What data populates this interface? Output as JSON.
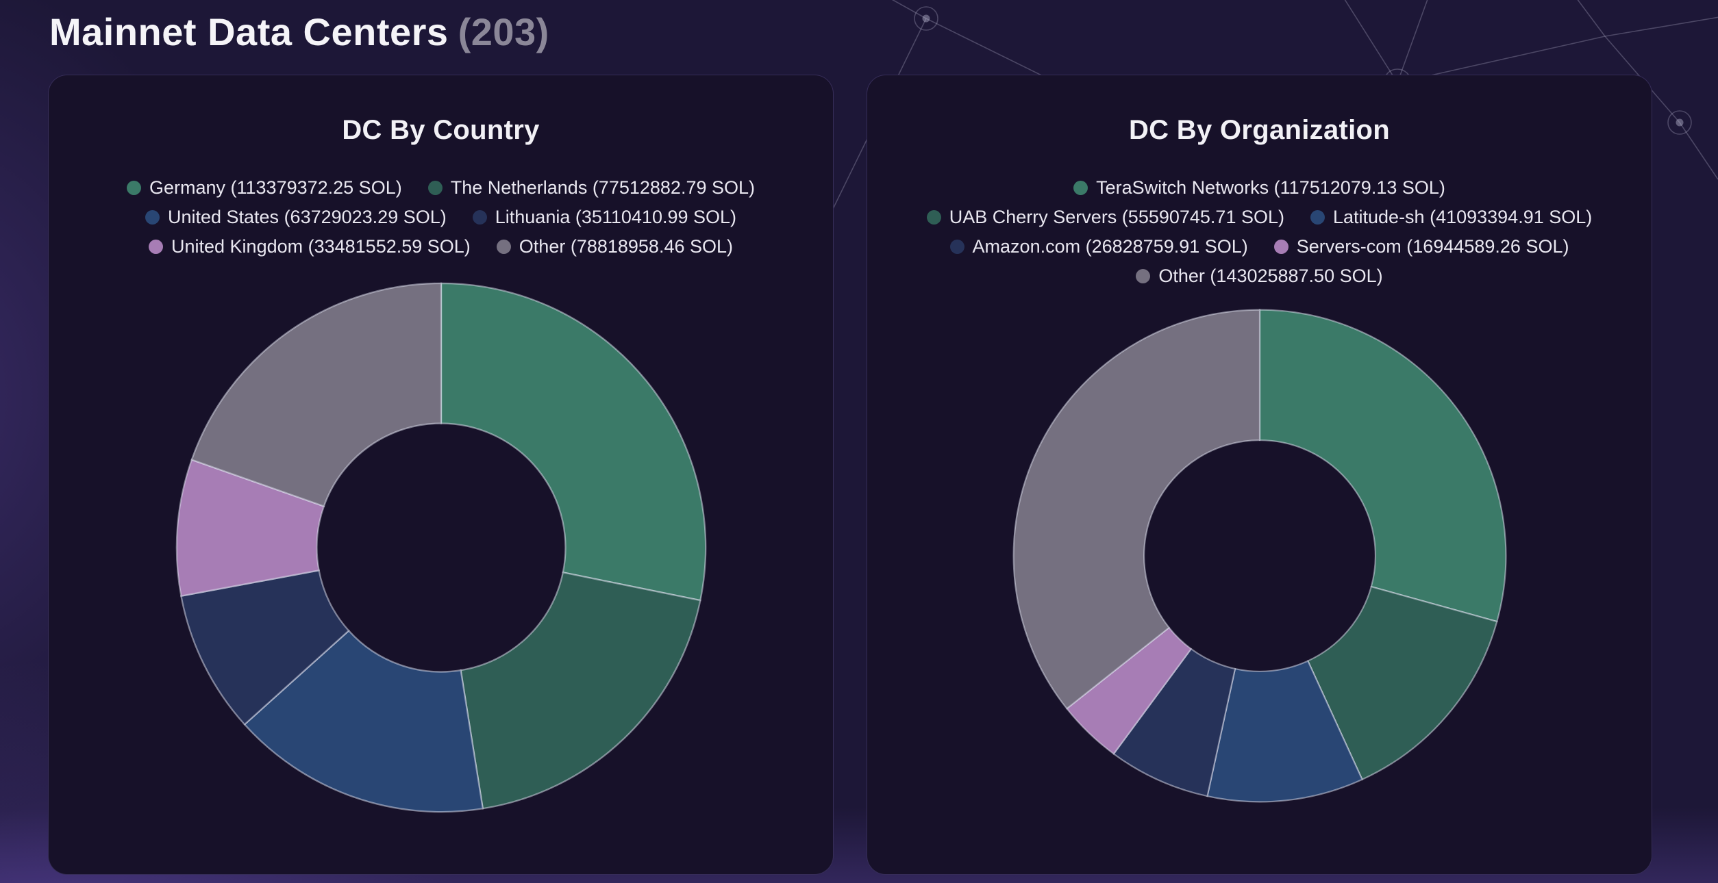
{
  "page": {
    "title": "Mainnet Data Centers",
    "title_count": "(203)"
  },
  "chart_data": [
    {
      "type": "pie",
      "donut": true,
      "title": "DC By Country",
      "unit": "SOL",
      "inner_radius_ratio": 0.47,
      "legend_position": "top",
      "segments": [
        {
          "label": "Germany",
          "value": 113379372.25,
          "display": "Germany (113379372.25 SOL)",
          "color": "#3b7a68"
        },
        {
          "label": "The Netherlands",
          "value": 77512882.79,
          "display": "The Netherlands (77512882.79 SOL)",
          "color": "#2f5e55"
        },
        {
          "label": "United States",
          "value": 63729023.29,
          "display": "United States (63729023.29 SOL)",
          "color": "#294674"
        },
        {
          "label": "Lithuania",
          "value": 35110410.99,
          "display": "Lithuania (35110410.99 SOL)",
          "color": "#263259"
        },
        {
          "label": "United Kingdom",
          "value": 33481552.59,
          "display": "United Kingdom (33481552.59 SOL)",
          "color": "#a77db5"
        },
        {
          "label": "Other",
          "value": 78818958.46,
          "display": "Other (78818958.46 SOL)",
          "color": "#757080"
        }
      ],
      "legend_rows": [
        [
          0,
          1
        ],
        [
          2,
          3
        ],
        [
          4,
          5
        ]
      ]
    },
    {
      "type": "pie",
      "donut": true,
      "title": "DC By Organization",
      "unit": "SOL",
      "inner_radius_ratio": 0.47,
      "legend_position": "top",
      "segments": [
        {
          "label": "TeraSwitch Networks",
          "value": 117512079.13,
          "display": "TeraSwitch Networks (117512079.13 SOL)",
          "color": "#3b7a68"
        },
        {
          "label": "UAB Cherry Servers",
          "value": 55590745.71,
          "display": "UAB Cherry Servers (55590745.71 SOL)",
          "color": "#2f5e55"
        },
        {
          "label": "Latitude-sh",
          "value": 41093394.91,
          "display": "Latitude-sh (41093394.91 SOL)",
          "color": "#294674"
        },
        {
          "label": "Amazon.com",
          "value": 26828759.91,
          "display": "Amazon.com (26828759.91 SOL)",
          "color": "#263259"
        },
        {
          "label": "Servers-com",
          "value": 16944589.26,
          "display": "Servers-com (16944589.26 SOL)",
          "color": "#a77db5"
        },
        {
          "label": "Other",
          "value": 143025887.5,
          "display": "Other (143025887.50 SOL)",
          "color": "#757080"
        }
      ],
      "legend_rows": [
        [
          0
        ],
        [
          1,
          2
        ],
        [
          3,
          4
        ],
        [
          5
        ]
      ]
    }
  ]
}
